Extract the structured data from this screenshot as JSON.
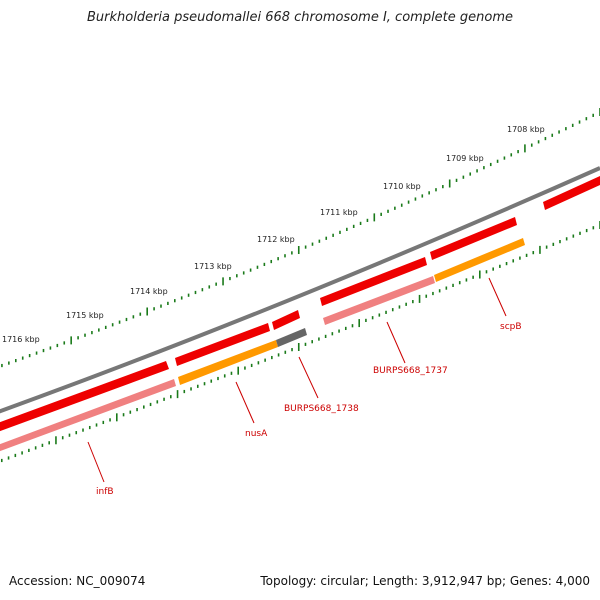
{
  "title": "Burkholderia pseudomallei 668 chromosome I, complete genome",
  "footer": {
    "accession": "Accession: NC_009074",
    "stats": "Topology: circular; Length: 3,912,947 bp; Genes: 4,000"
  },
  "ticks": [
    "1708 kbp",
    "1709 kbp",
    "1710 kbp",
    "1711 kbp",
    "1712 kbp",
    "1713 kbp",
    "1714 kbp",
    "1715 kbp",
    "1716 kbp"
  ],
  "genes": [
    "infB",
    "nusA",
    "BURPS668_1738",
    "BURPS668_1737",
    "scpB"
  ],
  "colors": {
    "backbone": "#7f7f7f",
    "gene": "#ee0000",
    "cds": "#f08080",
    "cds_alt": "#ff9900",
    "cds_gray": "#666666",
    "tick": "#1a7a1a",
    "label": "#cc0000"
  }
}
